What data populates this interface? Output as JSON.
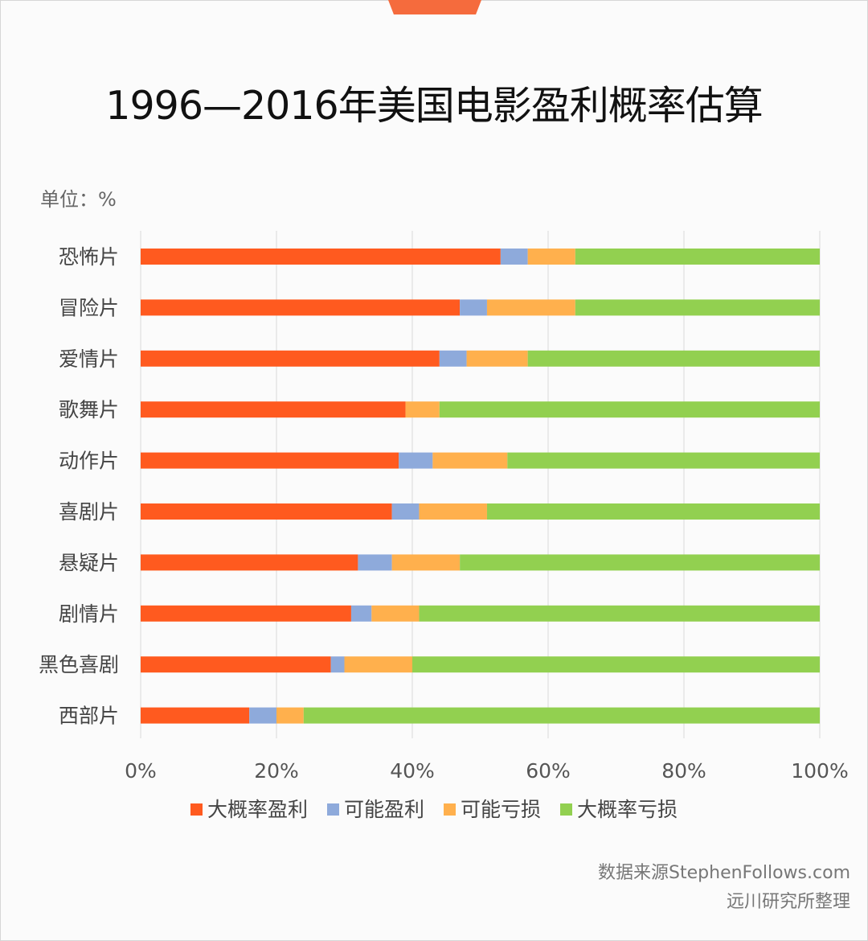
{
  "chart_data": {
    "type": "bar",
    "orientation": "horizontal",
    "stacked": true,
    "percent_stacked": true,
    "title": "1996—2016年美国电影盈利概率估算",
    "unit_label": "单位：%",
    "categories": [
      "恐怖片",
      "冒险片",
      "爱情片",
      "歌舞片",
      "动作片",
      "喜剧片",
      "悬疑片",
      "剧情片",
      "黑色喜剧",
      "西部片"
    ],
    "series": [
      {
        "name": "大概率盈利",
        "color": "#ff5a1f",
        "values": [
          53,
          47,
          44,
          39,
          38,
          37,
          32,
          31,
          28,
          16
        ]
      },
      {
        "name": "可能盈利",
        "color": "#8eaadb",
        "values": [
          4,
          4,
          4,
          0,
          5,
          4,
          5,
          3,
          2,
          4
        ]
      },
      {
        "name": "可能亏损",
        "color": "#ffb04d",
        "values": [
          7,
          13,
          9,
          5,
          11,
          10,
          10,
          7,
          10,
          4
        ]
      },
      {
        "name": "大概率亏损",
        "color": "#92d050",
        "values": [
          36,
          36,
          43,
          56,
          46,
          49,
          53,
          59,
          60,
          76
        ]
      }
    ],
    "x_ticks": [
      "0%",
      "20%",
      "40%",
      "60%",
      "80%",
      "100%"
    ],
    "xlim": [
      0,
      100
    ],
    "grid": true,
    "legend_position": "bottom"
  },
  "footer": {
    "source": "数据来源StephenFollows.com",
    "compiled_by": "远川研究所整理"
  },
  "colors": {
    "accent_tab": "#f56b3d",
    "gridline": "#d9d9d9"
  }
}
